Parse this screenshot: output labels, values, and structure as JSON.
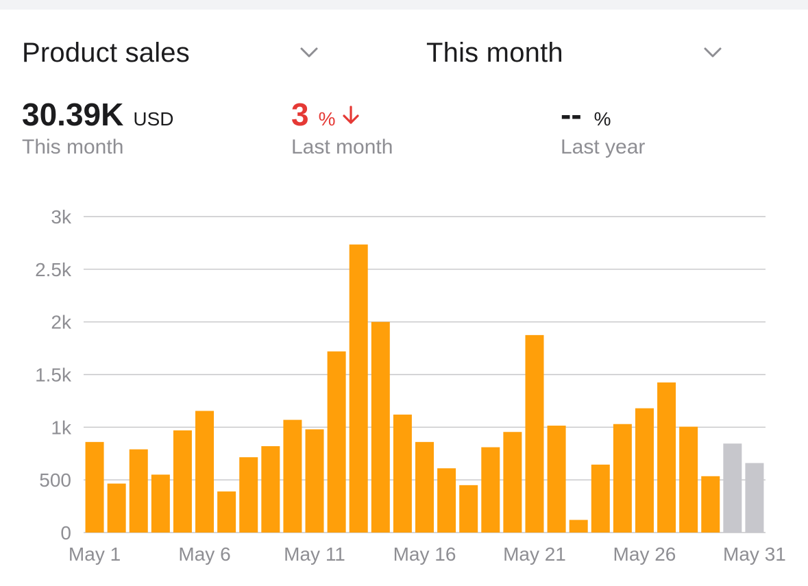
{
  "header": {
    "metric_selector": {
      "label": "Product sales",
      "icon": "chevron-down-icon"
    },
    "period_selector": {
      "label": "This month",
      "icon": "chevron-down-icon"
    }
  },
  "stats": {
    "this_month": {
      "value": "30.39K",
      "unit": "USD",
      "caption": "This month"
    },
    "last_month": {
      "value": "3",
      "unit": "%",
      "caption": "Last month",
      "trend_icon": "arrow-down-icon",
      "color": "#e53935"
    },
    "last_year": {
      "value": "--",
      "unit": "%",
      "caption": "Last year"
    }
  },
  "colors": {
    "bar_actual": "#ff9f0a",
    "bar_projected": "#c7c7cc",
    "grid": "#c6c6c8",
    "axis_text": "#8e8e93"
  },
  "chart_data": {
    "type": "bar",
    "title": "",
    "xlabel": "",
    "ylabel": "",
    "ylim": [
      0,
      3000
    ],
    "y_ticks": [
      0,
      500,
      1000,
      1500,
      2000,
      2500,
      3000
    ],
    "y_tick_labels": [
      "0",
      "500",
      "1k",
      "1.5k",
      "2k",
      "2.5k",
      "3k"
    ],
    "categories": [
      "May 1",
      "May 2",
      "May 3",
      "May 4",
      "May 5",
      "May 6",
      "May 7",
      "May 8",
      "May 9",
      "May 10",
      "May 11",
      "May 12",
      "May 13",
      "May 14",
      "May 15",
      "May 16",
      "May 17",
      "May 18",
      "May 19",
      "May 20",
      "May 21",
      "May 22",
      "May 23",
      "May 24",
      "May 25",
      "May 26",
      "May 27",
      "May 28",
      "May 29",
      "May 30",
      "May 31"
    ],
    "x_tick_labels": [
      "May 1",
      "May 6",
      "May 11",
      "May 16",
      "May 21",
      "May 26",
      "May 31"
    ],
    "values": [
      860,
      465,
      790,
      550,
      970,
      1155,
      390,
      715,
      820,
      1070,
      980,
      1720,
      2735,
      2000,
      1120,
      860,
      610,
      450,
      810,
      955,
      1875,
      1015,
      120,
      645,
      1030,
      1180,
      1425,
      1005,
      535,
      845,
      660
    ],
    "projected_from_index": 29,
    "grid": true,
    "legend": "none"
  }
}
